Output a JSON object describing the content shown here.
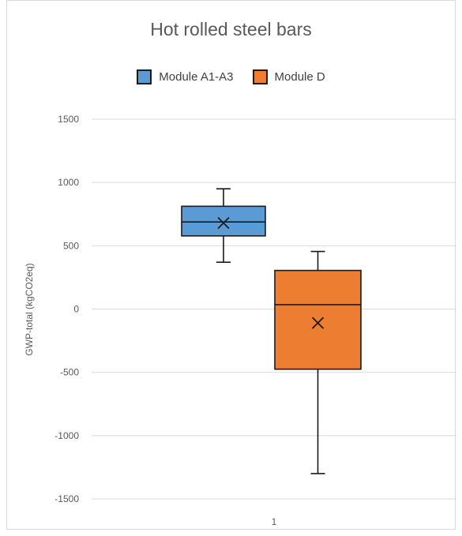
{
  "chart_data": {
    "type": "box",
    "title": "Hot rolled steel bars",
    "ylabel": "GWP-total (kgCO2eq)",
    "xlabel": "",
    "ylim": [
      -1500,
      1500
    ],
    "yticks": [
      1500,
      1000,
      500,
      0,
      -500,
      -1000,
      -1500
    ],
    "ytick_labels": [
      "1500",
      "1000",
      "500",
      "0",
      "-500",
      "-1000",
      "-1500"
    ],
    "categories": [
      "1"
    ],
    "legend_position": "top",
    "grid": "horizontal",
    "series": [
      {
        "name": "Module A1-A3",
        "color": "#5b9bd5",
        "min": 370,
        "q1": 578,
        "median": 688,
        "q3": 812,
        "max": 950,
        "mean": 680
      },
      {
        "name": "Module D",
        "color": "#ed7d31",
        "min": -1300,
        "q1": -475,
        "median": 35,
        "q3": 305,
        "max": 455,
        "mean": -110
      }
    ]
  }
}
